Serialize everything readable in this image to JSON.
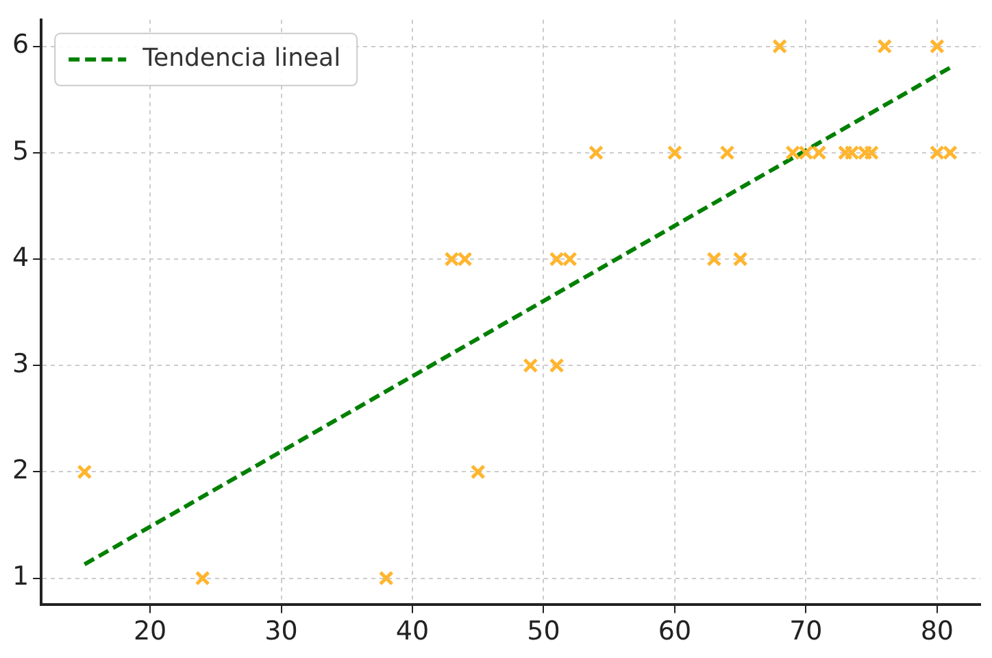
{
  "chart_data": {
    "type": "scatter",
    "xlim": [
      11.7,
      83.3
    ],
    "xticks": [
      20,
      30,
      40,
      50,
      60,
      70,
      80
    ],
    "ylim": [
      0.75,
      6.25
    ],
    "yticks": [
      1,
      2,
      3,
      4,
      5,
      6
    ],
    "grid": true,
    "legend": "top left",
    "series": [
      {
        "type": "scatter",
        "color": "#ffb52e",
        "marker": "cross",
        "x": [
          15,
          24,
          38,
          43,
          44,
          45,
          49,
          51,
          51,
          52,
          54,
          60,
          63,
          64,
          65,
          68,
          69,
          70,
          71,
          73,
          73.5,
          74.5,
          75,
          76,
          80,
          80,
          81
        ],
        "values": [
          2,
          1,
          1,
          4,
          4,
          2,
          3,
          3,
          4,
          4,
          5,
          5,
          4,
          5,
          4,
          6,
          5,
          5,
          5,
          5,
          5,
          5,
          5,
          6,
          6,
          5,
          5
        ]
      },
      {
        "type": "line",
        "name": "Tendencia lineal",
        "color": "#008000",
        "line_style": "dashed",
        "marker": "none",
        "x": [
          15,
          81
        ],
        "values": [
          1.13,
          5.8
        ]
      }
    ]
  }
}
